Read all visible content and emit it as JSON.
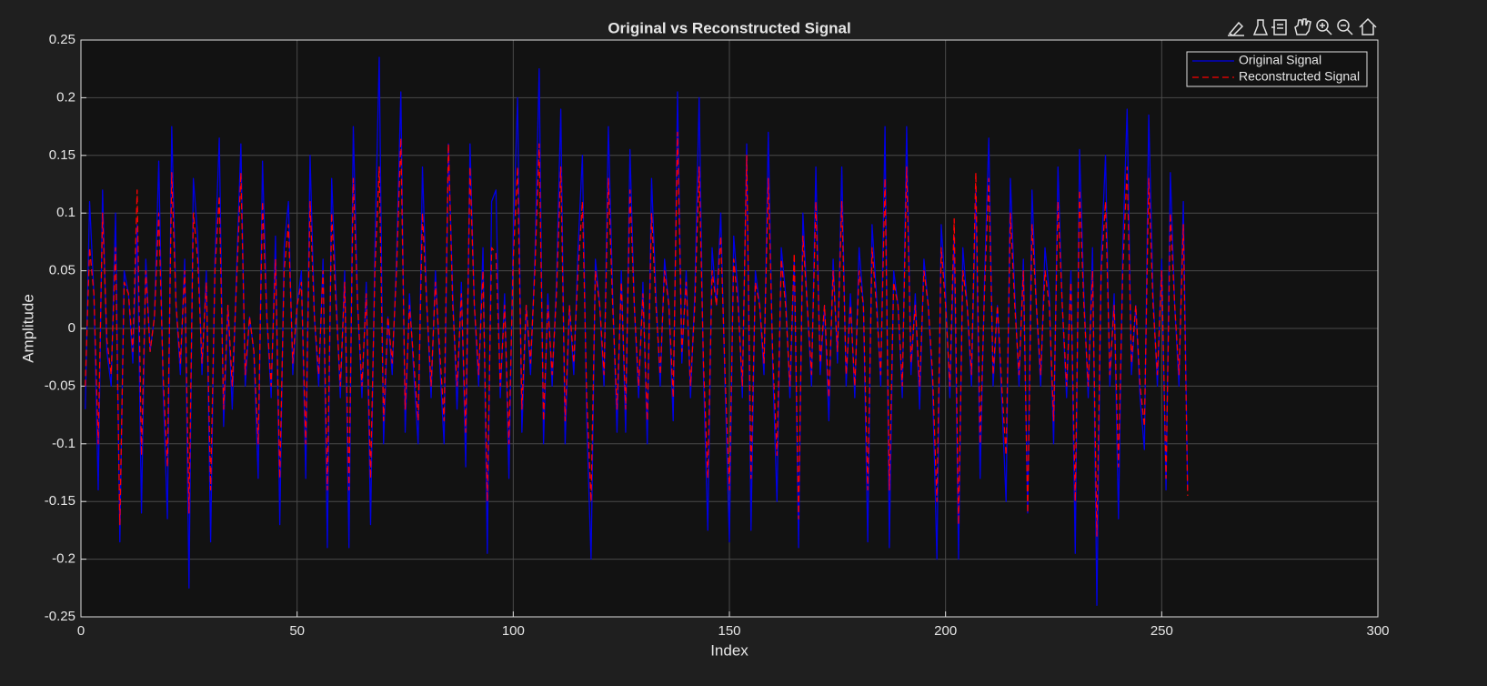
{
  "chart_data": {
    "type": "line",
    "title": "Original vs Reconstructed Signal",
    "x_label": "Index",
    "y_label": "Amplitude",
    "xlim": [
      0,
      300
    ],
    "xticks": [
      0,
      50,
      100,
      150,
      200,
      250,
      300
    ],
    "ylim": [
      -0.25,
      0.25
    ],
    "yticks": [
      -0.25,
      -0.2,
      -0.15,
      -0.1,
      -0.05,
      0,
      0.05,
      0.1,
      0.15,
      0.2,
      0.25
    ],
    "grid": true,
    "legend": "northeast",
    "x": [
      1,
      2,
      3,
      4,
      5,
      6,
      7,
      8,
      9,
      10,
      11,
      12,
      13,
      14,
      15,
      16,
      17,
      18,
      19,
      20,
      21,
      22,
      23,
      24,
      25,
      26,
      27,
      28,
      29,
      30,
      31,
      32,
      33,
      34,
      35,
      36,
      37,
      38,
      39,
      40,
      41,
      42,
      43,
      44,
      45,
      46,
      47,
      48,
      49,
      50,
      51,
      52,
      53,
      54,
      55,
      56,
      57,
      58,
      59,
      60,
      61,
      62,
      63,
      64,
      65,
      66,
      67,
      68,
      69,
      70,
      71,
      72,
      73,
      74,
      75,
      76,
      77,
      78,
      79,
      80,
      81,
      82,
      83,
      84,
      85,
      86,
      87,
      88,
      89,
      90,
      91,
      92,
      93,
      94,
      95,
      96,
      97,
      98,
      99,
      100,
      101,
      102,
      103,
      104,
      105,
      106,
      107,
      108,
      109,
      110,
      111,
      112,
      113,
      114,
      115,
      116,
      117,
      118,
      119,
      120,
      121,
      122,
      123,
      124,
      125,
      126,
      127,
      128,
      129,
      130,
      131,
      132,
      133,
      134,
      135,
      136,
      137,
      138,
      139,
      140,
      141,
      142,
      143,
      144,
      145,
      146,
      147,
      148,
      149,
      150,
      151,
      152,
      153,
      154,
      155,
      156,
      157,
      158,
      159,
      160,
      161,
      162,
      163,
      164,
      165,
      166,
      167,
      168,
      169,
      170,
      171,
      172,
      173,
      174,
      175,
      176,
      177,
      178,
      179,
      180,
      181,
      182,
      183,
      184,
      185,
      186,
      187,
      188,
      189,
      190,
      191,
      192,
      193,
      194,
      195,
      196,
      197,
      198,
      199,
      200,
      201,
      202,
      203,
      204,
      205,
      206,
      207,
      208,
      209,
      210,
      211,
      212,
      213,
      214,
      215,
      216,
      217,
      218,
      219,
      220,
      221,
      222,
      223,
      224,
      225,
      226,
      227,
      228,
      229,
      230,
      231,
      232,
      233,
      234,
      235,
      236,
      237,
      238,
      239,
      240,
      241,
      242,
      243,
      244,
      245,
      246,
      247,
      248,
      249,
      250,
      251,
      252,
      253,
      254,
      255,
      256
    ],
    "series": [
      {
        "name": "Original Signal",
        "color": "#0000e6",
        "dash": false,
        "values": [
          -0.07,
          0.11,
          0.03,
          -0.14,
          0.12,
          -0.02,
          -0.05,
          0.1,
          -0.185,
          0.05,
          0.03,
          -0.03,
          0.09,
          -0.16,
          0.06,
          -0.02,
          0.01,
          0.145,
          -0.05,
          -0.165,
          0.175,
          0.02,
          -0.04,
          0.06,
          -0.225,
          0.13,
          0.08,
          -0.04,
          0.05,
          -0.185,
          0.06,
          0.165,
          -0.085,
          0.02,
          -0.07,
          0.05,
          0.16,
          -0.05,
          0.01,
          -0.02,
          -0.13,
          0.145,
          0.01,
          -0.06,
          0.08,
          -0.17,
          0.07,
          0.11,
          -0.04,
          0.02,
          0.05,
          -0.13,
          0.15,
          0.01,
          -0.05,
          0.06,
          -0.19,
          0.13,
          0.03,
          -0.06,
          0.05,
          -0.19,
          0.175,
          0.02,
          -0.06,
          0.04,
          -0.17,
          0.07,
          0.235,
          -0.1,
          0.01,
          -0.04,
          0.06,
          0.205,
          -0.09,
          0.03,
          -0.04,
          -0.1,
          0.14,
          0.02,
          -0.06,
          0.05,
          -0.03,
          -0.1,
          0.16,
          0.03,
          -0.07,
          0.04,
          -0.12,
          0.16,
          0.02,
          -0.05,
          0.07,
          -0.195,
          0.11,
          0.12,
          -0.06,
          0.03,
          -0.13,
          0.08,
          0.2,
          -0.09,
          0.02,
          -0.04,
          0.06,
          0.225,
          -0.1,
          0.03,
          -0.05,
          0.04,
          0.19,
          -0.1,
          0.02,
          -0.04,
          0.07,
          0.15,
          -0.08,
          -0.2,
          0.06,
          0.02,
          -0.05,
          0.175,
          0.03,
          -0.09,
          0.05,
          -0.09,
          0.155,
          0.02,
          -0.06,
          0.04,
          -0.1,
          0.13,
          0.03,
          -0.05,
          0.06,
          0.02,
          -0.08,
          0.205,
          -0.03,
          0.05,
          -0.06,
          0.03,
          0.2,
          -0.04,
          -0.175,
          0.07,
          0.02,
          0.1,
          -0.05,
          -0.185,
          0.08,
          0.03,
          -0.06,
          0.16,
          -0.175,
          0.05,
          0.02,
          -0.04,
          0.17,
          -0.03,
          -0.15,
          0.07,
          0.03,
          -0.06,
          0.06,
          -0.19,
          0.1,
          0.02,
          -0.05,
          0.14,
          -0.04,
          0.02,
          -0.08,
          0.06,
          -0.03,
          0.14,
          -0.05,
          0.03,
          -0.06,
          0.07,
          0.02,
          -0.185,
          0.09,
          0.03,
          -0.05,
          0.175,
          -0.19,
          0.05,
          0.02,
          -0.06,
          0.175,
          -0.04,
          0.03,
          -0.07,
          0.06,
          0.02,
          -0.05,
          -0.2,
          0.09,
          0.03,
          -0.06,
          0.08,
          -0.2,
          0.07,
          0.02,
          -0.05,
          0.12,
          -0.13,
          0.04,
          0.165,
          -0.05,
          0.02,
          -0.06,
          -0.15,
          0.13,
          0.03,
          -0.05,
          0.06,
          -0.16,
          0.12,
          0.02,
          -0.05,
          0.07,
          0.03,
          -0.1,
          0.14,
          0.02,
          -0.06,
          0.05,
          -0.195,
          0.155,
          0.03,
          -0.06,
          0.07,
          -0.24,
          0.06,
          0.15,
          -0.05,
          0.03,
          -0.165,
          0.07,
          0.19,
          -0.04,
          0.02,
          -0.06,
          -0.105,
          0.185,
          0.03,
          -0.05,
          0.06,
          -0.14,
          0.135,
          0.02,
          -0.05,
          0.11,
          -0.14
        ]
      },
      {
        "name": "Reconstructed Signal",
        "color": "#ff0000",
        "dash": true,
        "values": [
          -0.05,
          0.07,
          0.03,
          -0.1,
          0.1,
          -0.01,
          -0.04,
          0.07,
          -0.17,
          0.04,
          0.03,
          -0.02,
          0.12,
          -0.11,
          0.05,
          -0.02,
          0.01,
          0.1,
          -0.04,
          -0.12,
          0.135,
          0.02,
          -0.03,
          0.05,
          -0.16,
          0.1,
          0.06,
          -0.03,
          0.04,
          -0.14,
          0.05,
          0.115,
          -0.07,
          0.02,
          -0.05,
          0.04,
          0.135,
          -0.04,
          0.01,
          -0.02,
          -0.1,
          0.11,
          0.01,
          -0.05,
          0.06,
          -0.13,
          0.05,
          0.09,
          -0.03,
          0.02,
          0.04,
          -0.1,
          0.11,
          0.01,
          -0.04,
          0.05,
          -0.14,
          0.1,
          0.02,
          -0.05,
          0.04,
          -0.14,
          0.13,
          0.02,
          -0.05,
          0.03,
          -0.13,
          0.05,
          0.14,
          -0.08,
          0.01,
          -0.03,
          0.05,
          0.165,
          -0.07,
          0.02,
          -0.03,
          -0.08,
          0.1,
          0.02,
          -0.05,
          0.04,
          -0.02,
          -0.08,
          0.16,
          0.02,
          -0.05,
          0.03,
          -0.09,
          0.14,
          0.02,
          -0.04,
          0.05,
          -0.15,
          0.07,
          0.065,
          -0.05,
          0.02,
          -0.1,
          0.06,
          0.14,
          -0.07,
          0.02,
          -0.03,
          0.05,
          0.16,
          -0.08,
          0.02,
          -0.04,
          0.03,
          0.14,
          -0.08,
          0.02,
          -0.03,
          0.05,
          0.11,
          -0.06,
          -0.15,
          0.05,
          0.02,
          -0.04,
          0.13,
          0.02,
          -0.07,
          0.04,
          -0.07,
          0.12,
          0.02,
          -0.05,
          0.03,
          -0.08,
          0.1,
          0.02,
          -0.04,
          0.05,
          0.02,
          -0.06,
          0.17,
          -0.02,
          0.04,
          -0.05,
          0.02,
          0.14,
          -0.03,
          -0.13,
          0.05,
          0.02,
          0.08,
          -0.04,
          -0.14,
          0.06,
          0.02,
          -0.05,
          0.15,
          -0.13,
          0.04,
          0.02,
          -0.03,
          0.13,
          -0.02,
          -0.11,
          0.06,
          0.02,
          -0.05,
          0.065,
          -0.165,
          0.08,
          0.02,
          -0.04,
          0.11,
          -0.03,
          0.02,
          -0.06,
          0.05,
          -0.02,
          0.11,
          -0.04,
          0.02,
          -0.05,
          0.05,
          0.02,
          -0.14,
          0.07,
          0.02,
          -0.04,
          0.13,
          -0.14,
          0.04,
          0.02,
          -0.05,
          0.14,
          -0.03,
          0.02,
          -0.05,
          0.05,
          0.02,
          -0.04,
          -0.15,
          0.07,
          0.02,
          -0.05,
          0.095,
          -0.17,
          0.05,
          0.02,
          -0.04,
          0.135,
          -0.1,
          0.03,
          0.13,
          -0.04,
          0.02,
          -0.05,
          -0.11,
          0.1,
          0.02,
          -0.04,
          0.05,
          -0.16,
          0.09,
          0.02,
          -0.04,
          0.05,
          0.02,
          -0.08,
          0.11,
          0.02,
          -0.05,
          0.04,
          -0.15,
          0.12,
          0.02,
          -0.05,
          0.05,
          -0.18,
          0.05,
          0.11,
          -0.04,
          0.02,
          -0.12,
          0.05,
          0.14,
          -0.03,
          0.02,
          -0.05,
          -0.085,
          0.13,
          0.02,
          -0.04,
          0.05,
          -0.13,
          0.1,
          0.02,
          -0.04,
          0.09,
          -0.145
        ]
      }
    ]
  }
}
